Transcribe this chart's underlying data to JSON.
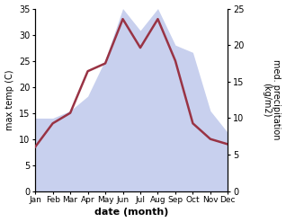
{
  "months": [
    "Jan",
    "Feb",
    "Mar",
    "Apr",
    "May",
    "Jun",
    "Jul",
    "Aug",
    "Sep",
    "Oct",
    "Nov",
    "Dec"
  ],
  "temperature": [
    8.5,
    13.0,
    15.0,
    23.0,
    24.5,
    33.0,
    27.5,
    33.0,
    25.0,
    13.0,
    10.0,
    9.0
  ],
  "precipitation": [
    10,
    10,
    11,
    13,
    18,
    25,
    22,
    25,
    20,
    19,
    11,
    8
  ],
  "temp_color": "#993344",
  "precip_fill_color": "#c8d0ee",
  "temp_ylim": [
    0,
    35
  ],
  "precip_ylim": [
    0,
    25
  ],
  "temp_yticks": [
    0,
    5,
    10,
    15,
    20,
    25,
    30,
    35
  ],
  "precip_yticks": [
    0,
    5,
    10,
    15,
    20,
    25
  ],
  "xlabel": "date (month)",
  "ylabel_left": "max temp (C)",
  "ylabel_right": "med. precipitation\n(kg/m2)",
  "bg_color": "#ffffff"
}
